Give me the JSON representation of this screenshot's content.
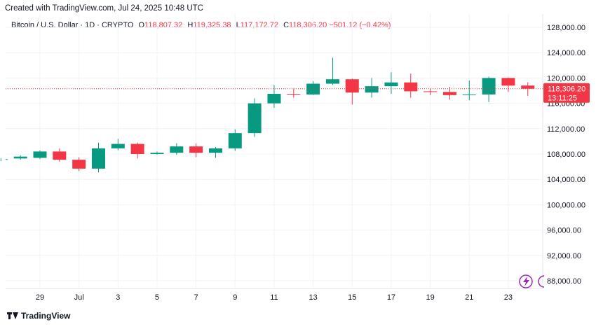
{
  "header": {
    "created": "Created with TradingView.com, Jul 24, 2025 10:48 UTC"
  },
  "legend": {
    "symbol": "Bitcoin / U.S. Dollar · 1D · CRYPTO",
    "open_key": "O",
    "open": "118,807.32",
    "high_key": "H",
    "high": "119,325.38",
    "low_key": "L",
    "low": "117,172.72",
    "close_key": "C",
    "close": "118,306.20",
    "change": "−501.12 (−0.42%)"
  },
  "price_tag": {
    "price": "118,306.20",
    "countdown": "13:11:25"
  },
  "footer": {
    "brand": "TradingView"
  },
  "colors": {
    "up": "#089981",
    "down": "#f23645",
    "grid": "#f0f3fa",
    "text": "#131722",
    "accent": "#9c27b0"
  },
  "chart_data": {
    "type": "candlestick",
    "title": "Bitcoin / U.S. Dollar · 1D · CRYPTO",
    "ylim": [
      86000,
      130000
    ],
    "yticks": [
      128000,
      124000,
      120000,
      116000,
      112000,
      108000,
      104000,
      100000,
      96000,
      92000,
      88000
    ],
    "ytick_labels": [
      "128,000.00",
      "124,000.00",
      "120,000.00",
      "116,000.00",
      "112,000.00",
      "108,000.00",
      "104,000.00",
      "100,000.00",
      "96,000.00",
      "92,000.00",
      "88,000.00"
    ],
    "xticks": [
      {
        "day": 29,
        "label": "29"
      },
      {
        "day": 31,
        "label": "Jul"
      },
      {
        "day": 33,
        "label": "3"
      },
      {
        "day": 35,
        "label": "5"
      },
      {
        "day": 37,
        "label": "7"
      },
      {
        "day": 39,
        "label": "9"
      },
      {
        "day": 41,
        "label": "11"
      },
      {
        "day": 43,
        "label": "13"
      },
      {
        "day": 45,
        "label": "15"
      },
      {
        "day": 47,
        "label": "17"
      },
      {
        "day": 49,
        "label": "19"
      },
      {
        "day": 51,
        "label": "21"
      },
      {
        "day": 53,
        "label": "23"
      }
    ],
    "candles": [
      {
        "date": "Jun 27",
        "o": 107100,
        "h": 107300,
        "l": 106900,
        "c": 107200
      },
      {
        "date": "Jun 28",
        "o": 107300,
        "h": 107800,
        "l": 107100,
        "c": 107600
      },
      {
        "date": "Jun 29",
        "o": 107400,
        "h": 108600,
        "l": 107200,
        "c": 108400
      },
      {
        "date": "Jun 30",
        "o": 108400,
        "h": 108900,
        "l": 106800,
        "c": 107100
      },
      {
        "date": "Jul 1",
        "o": 107100,
        "h": 107500,
        "l": 105300,
        "c": 105700
      },
      {
        "date": "Jul 2",
        "o": 105700,
        "h": 109800,
        "l": 105100,
        "c": 108900
      },
      {
        "date": "Jul 3",
        "o": 108900,
        "h": 110400,
        "l": 108600,
        "c": 109600
      },
      {
        "date": "Jul 4",
        "o": 109600,
        "h": 109800,
        "l": 107300,
        "c": 108000
      },
      {
        "date": "Jul 5",
        "o": 108000,
        "h": 108400,
        "l": 107900,
        "c": 108200
      },
      {
        "date": "Jul 6",
        "o": 108200,
        "h": 109700,
        "l": 107900,
        "c": 109200
      },
      {
        "date": "Jul 7",
        "o": 109200,
        "h": 109700,
        "l": 107500,
        "c": 108200
      },
      {
        "date": "Jul 8",
        "o": 108200,
        "h": 109100,
        "l": 107400,
        "c": 108900
      },
      {
        "date": "Jul 9",
        "o": 108900,
        "h": 111900,
        "l": 108500,
        "c": 111300
      },
      {
        "date": "Jul 10",
        "o": 111300,
        "h": 116800,
        "l": 110700,
        "c": 116000
      },
      {
        "date": "Jul 11",
        "o": 116000,
        "h": 118900,
        "l": 115300,
        "c": 117500
      },
      {
        "date": "Jul 12",
        "o": 117500,
        "h": 118300,
        "l": 116900,
        "c": 117400
      },
      {
        "date": "Jul 13",
        "o": 117400,
        "h": 119500,
        "l": 117300,
        "c": 119100
      },
      {
        "date": "Jul 14",
        "o": 119100,
        "h": 123200,
        "l": 118900,
        "c": 119800
      },
      {
        "date": "Jul 15",
        "o": 119800,
        "h": 119900,
        "l": 115800,
        "c": 117700
      },
      {
        "date": "Jul 16",
        "o": 117700,
        "h": 120000,
        "l": 116900,
        "c": 118700
      },
      {
        "date": "Jul 17",
        "o": 118700,
        "h": 120900,
        "l": 117500,
        "c": 119300
      },
      {
        "date": "Jul 18",
        "o": 119300,
        "h": 120700,
        "l": 116900,
        "c": 117900
      },
      {
        "date": "Jul 19",
        "o": 117900,
        "h": 118300,
        "l": 117300,
        "c": 117800
      },
      {
        "date": "Jul 20",
        "o": 117800,
        "h": 118600,
        "l": 116600,
        "c": 117300
      },
      {
        "date": "Jul 21",
        "o": 117300,
        "h": 119600,
        "l": 116500,
        "c": 117400
      },
      {
        "date": "Jul 22",
        "o": 117400,
        "h": 120200,
        "l": 116200,
        "c": 120000
      },
      {
        "date": "Jul 23",
        "o": 120000,
        "h": 120100,
        "l": 117800,
        "c": 118800
      },
      {
        "date": "Jul 24",
        "o": 118807.32,
        "h": 119325.38,
        "l": 117172.72,
        "c": 118306.2
      }
    ],
    "last_price": 118306.2,
    "grid": true
  }
}
